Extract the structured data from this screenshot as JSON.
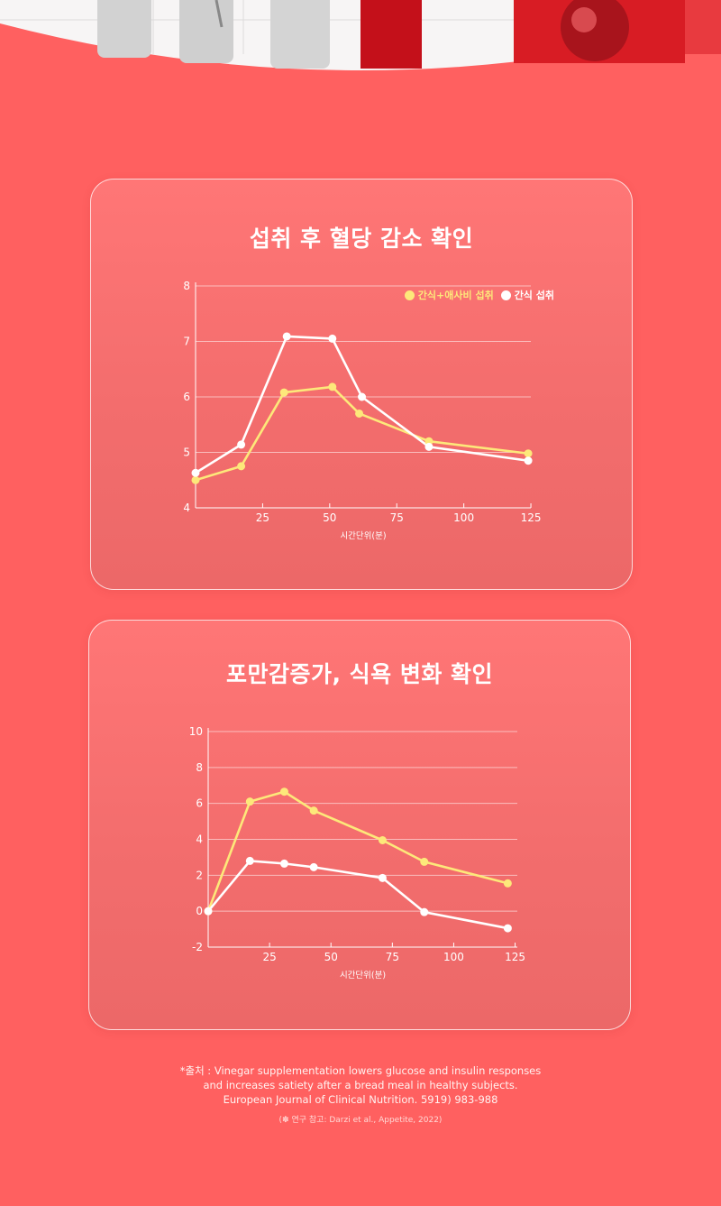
{
  "colors": {
    "background": "#ff6060",
    "series_yellow": "#fde87a",
    "series_white": "#ffffff"
  },
  "chart_data": [
    {
      "type": "line",
      "title": "섭취 후 혈당 감소 확인",
      "xlabel": "시간단위(분)",
      "ylabel": "",
      "xlim": [
        0,
        127
      ],
      "ylim": [
        4,
        8
      ],
      "xticks": [
        25,
        50,
        75,
        100,
        125
      ],
      "yticks": [
        4,
        5,
        6,
        7,
        8
      ],
      "grid": true,
      "legend": "top-right",
      "series": [
        {
          "name": "간식+애사비 섭취",
          "color": "#fde87a",
          "points": [
            [
              0,
              4.5
            ],
            [
              17,
              4.75
            ],
            [
              33,
              6.08
            ],
            [
              51,
              6.18
            ],
            [
              61,
              5.7
            ],
            [
              87,
              5.2
            ],
            [
              124,
              4.98
            ]
          ]
        },
        {
          "name": "간식 섭취",
          "color": "#ffffff",
          "points": [
            [
              0,
              4.63
            ],
            [
              17,
              5.14
            ],
            [
              34,
              7.09
            ],
            [
              51,
              7.05
            ],
            [
              62,
              6.0
            ],
            [
              87,
              5.1
            ],
            [
              124,
              4.85
            ]
          ]
        }
      ]
    },
    {
      "type": "line",
      "title": "포만감증가, 식욕 변화 확인",
      "xlabel": "시간단위(분)",
      "ylabel": "",
      "xlim": [
        0,
        127
      ],
      "ylim": [
        -2,
        10
      ],
      "xticks": [
        25,
        50,
        75,
        100,
        125
      ],
      "yticks": [
        -2,
        0,
        2,
        4,
        6,
        8,
        10
      ],
      "grid": true,
      "series": [
        {
          "color": "#fde87a",
          "points": [
            [
              0,
              0
            ],
            [
              17,
              6.1
            ],
            [
              31,
              6.65
            ],
            [
              43,
              5.6
            ],
            [
              71,
              3.95
            ],
            [
              88,
              2.75
            ],
            [
              122,
              1.55
            ]
          ]
        },
        {
          "color": "#ffffff",
          "points": [
            [
              0,
              0
            ],
            [
              17,
              2.8
            ],
            [
              31,
              2.65
            ],
            [
              43,
              2.45
            ],
            [
              71,
              1.85
            ],
            [
              88,
              -0.05
            ],
            [
              122,
              -0.95
            ]
          ]
        }
      ]
    }
  ],
  "source": {
    "line1": "*출처 : Vinegar supplementation lowers glucose and insulin responses",
    "line2": "and increases satiety after a bread meal in healthy subjects.",
    "line3": "European Journal of Clinical Nutrition. 5919) 983-988",
    "reference": "(✽ 연구 참고: Darzi et al., Appetite, 2022)"
  }
}
